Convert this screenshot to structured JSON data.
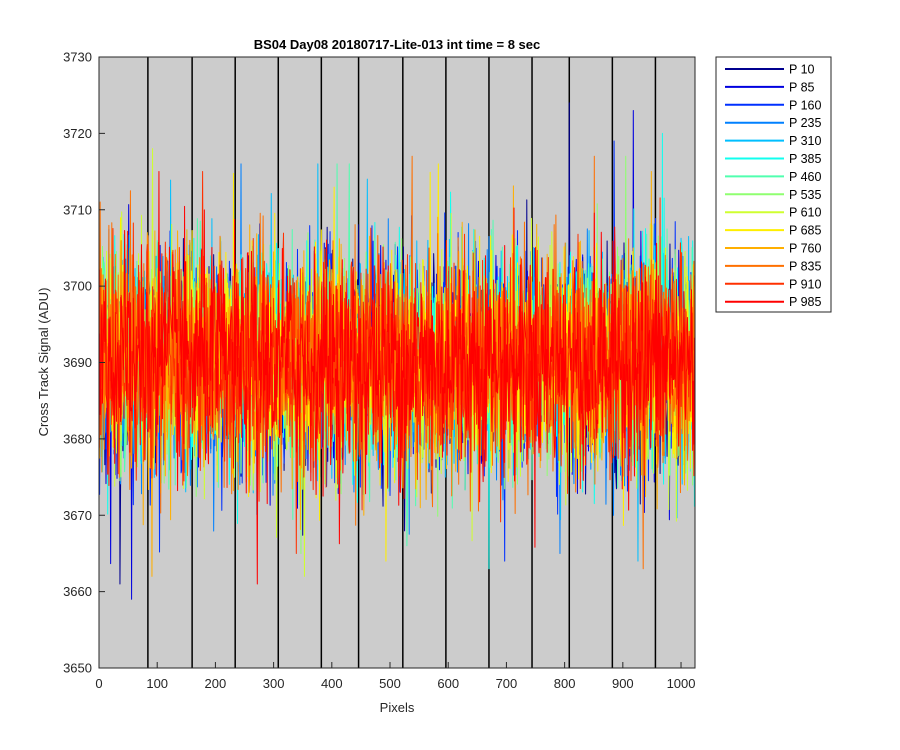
{
  "chart_data": {
    "type": "line",
    "title": "BS04 Day08 20180717-Lite-013 int time = 8 sec",
    "xlabel": "Pixels",
    "ylabel": "Cross Track Signal (ADU)",
    "xlim": [
      0,
      1024
    ],
    "ylim": [
      3650,
      3730
    ],
    "xticks": [
      0,
      100,
      200,
      300,
      400,
      500,
      600,
      700,
      800,
      900,
      1000
    ],
    "yticks": [
      3650,
      3660,
      3670,
      3680,
      3690,
      3700,
      3710,
      3720,
      3730
    ],
    "plot_background": "#cccccc",
    "grid": false,
    "vertical_lines_x": [
      84,
      160,
      234,
      308,
      382,
      446,
      522,
      596,
      670,
      744,
      808,
      882,
      956
    ],
    "legend_placement": "outside-right",
    "series": [
      {
        "name": "P 10",
        "color": "#00008f",
        "mean": 3690,
        "min": 3661,
        "max": 3724
      },
      {
        "name": "P 85",
        "color": "#0000df",
        "mean": 3690,
        "min": 3659,
        "max": 3723
      },
      {
        "name": "P 160",
        "color": "#0030ff",
        "mean": 3690,
        "min": 3664,
        "max": 3719
      },
      {
        "name": "P 235",
        "color": "#0080ff",
        "mean": 3690,
        "min": 3665,
        "max": 3716
      },
      {
        "name": "P 310",
        "color": "#00bfff",
        "mean": 3690,
        "min": 3664,
        "max": 3716
      },
      {
        "name": "P 385",
        "color": "#10ffef",
        "mean": 3690,
        "min": 3663,
        "max": 3720
      },
      {
        "name": "P 460",
        "color": "#50ffaf",
        "mean": 3690,
        "min": 3666,
        "max": 3716
      },
      {
        "name": "P 535",
        "color": "#8fff70",
        "mean": 3690,
        "min": 3665,
        "max": 3717
      },
      {
        "name": "P 610",
        "color": "#cfff30",
        "mean": 3690,
        "min": 3662,
        "max": 3718
      },
      {
        "name": "P 685",
        "color": "#ffef00",
        "mean": 3690,
        "min": 3664,
        "max": 3716
      },
      {
        "name": "P 760",
        "color": "#ffaf00",
        "mean": 3690,
        "min": 3662,
        "max": 3715
      },
      {
        "name": "P 835",
        "color": "#ff7000",
        "mean": 3690,
        "min": 3663,
        "max": 3717
      },
      {
        "name": "P 910",
        "color": "#ff3000",
        "mean": 3690,
        "min": 3665,
        "max": 3715
      },
      {
        "name": "P 985",
        "color": "#ff0000",
        "mean": 3690,
        "min": 3661,
        "max": 3715
      }
    ]
  }
}
